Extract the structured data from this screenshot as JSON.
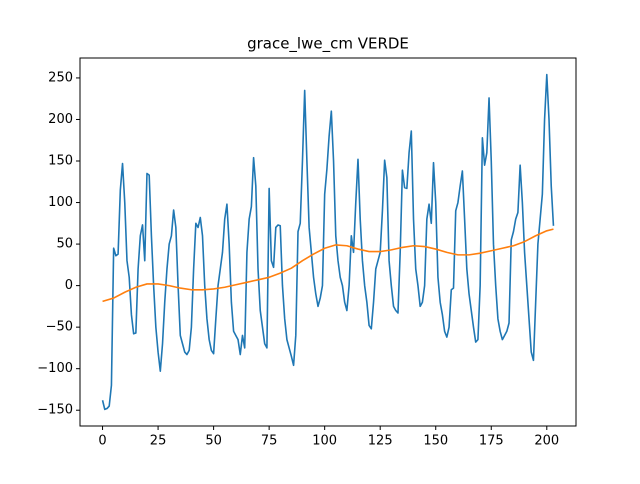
{
  "chart_data": {
    "type": "line",
    "title": "grace_lwe_cm VERDE",
    "xlim": [
      -10.15,
      213.15
    ],
    "ylim": [
      -169,
      274
    ],
    "xticks": [
      0,
      25,
      50,
      75,
      100,
      125,
      150,
      175,
      200
    ],
    "yticks": [
      {
        "value": -150,
        "label": "−150"
      },
      {
        "value": -100,
        "label": "−100"
      },
      {
        "value": -50,
        "label": "−50"
      },
      0,
      50,
      100,
      150,
      200,
      250
    ],
    "series": [
      {
        "color": "#1f77b4",
        "x": [
          0,
          1,
          2,
          3,
          4,
          5,
          6,
          7,
          8,
          9,
          10,
          11,
          12,
          13,
          14,
          15,
          16,
          17,
          18,
          19,
          20,
          21,
          22,
          23,
          24,
          25,
          26,
          27,
          28,
          29,
          30,
          31,
          32,
          33,
          34,
          35,
          36,
          37,
          38,
          39,
          40,
          41,
          42,
          43,
          44,
          45,
          46,
          47,
          48,
          49,
          50,
          51,
          52,
          53,
          54,
          55,
          56,
          57,
          58,
          59,
          60,
          61,
          62,
          63,
          64,
          65,
          66,
          67,
          68,
          69,
          70,
          71,
          72,
          73,
          74,
          75,
          76,
          77,
          78,
          79,
          80,
          81,
          82,
          83,
          84,
          85,
          86,
          87,
          88,
          89,
          90,
          91,
          92,
          93,
          94,
          95,
          96,
          97,
          98,
          99,
          100,
          101,
          102,
          103,
          104,
          105,
          106,
          107,
          108,
          109,
          110,
          111,
          112,
          113,
          114,
          115,
          116,
          117,
          118,
          119,
          120,
          121,
          122,
          123,
          124,
          125,
          126,
          127,
          128,
          129,
          130,
          131,
          132,
          133,
          134,
          135,
          136,
          137,
          138,
          139,
          140,
          141,
          142,
          143,
          144,
          145,
          146,
          147,
          148,
          149,
          150,
          151,
          152,
          153,
          154,
          155,
          156,
          157,
          158,
          159,
          160,
          161,
          162,
          163,
          164,
          165,
          166,
          167,
          168,
          169,
          170,
          171,
          172,
          173,
          174,
          175,
          176,
          177,
          178,
          179,
          180,
          181,
          182,
          183,
          184,
          185,
          186,
          187,
          188,
          189,
          190,
          191,
          192,
          193,
          194,
          195,
          196,
          197,
          198,
          199,
          200,
          201,
          202,
          203
        ],
        "values": [
          -138,
          -149,
          -148,
          -145,
          -120,
          45,
          36,
          38,
          115,
          147,
          100,
          30,
          10,
          -35,
          -58,
          -57,
          20,
          60,
          73,
          30,
          135,
          133,
          60,
          0,
          -50,
          -80,
          -103,
          -70,
          -20,
          20,
          50,
          60,
          91,
          70,
          0,
          -60,
          -70,
          -80,
          -83,
          -78,
          -50,
          20,
          75,
          70,
          82,
          60,
          0,
          -40,
          -65,
          -78,
          -82,
          -40,
          0,
          20,
          40,
          80,
          98,
          50,
          -20,
          -55,
          -60,
          -65,
          -83,
          -60,
          -75,
          40,
          80,
          95,
          154,
          120,
          20,
          -30,
          -50,
          -70,
          -75,
          117,
          30,
          22,
          70,
          73,
          72,
          0,
          -40,
          -65,
          -75,
          -85,
          -96,
          -60,
          65,
          75,
          150,
          235,
          150,
          70,
          40,
          10,
          -10,
          -25,
          -15,
          0,
          110,
          140,
          180,
          210,
          150,
          60,
          30,
          10,
          0,
          -20,
          -30,
          0,
          60,
          40,
          100,
          152,
          80,
          30,
          0,
          -20,
          -48,
          -52,
          -20,
          20,
          30,
          40,
          90,
          151,
          130,
          30,
          0,
          -25,
          -30,
          -33,
          40,
          139,
          118,
          117,
          160,
          186,
          80,
          20,
          0,
          -25,
          -20,
          0,
          80,
          98,
          75,
          148,
          100,
          10,
          -20,
          -35,
          -55,
          -62,
          -50,
          -5,
          -3,
          90,
          100,
          120,
          138,
          80,
          20,
          -10,
          -30,
          -50,
          -68,
          -65,
          0,
          178,
          145,
          160,
          226,
          150,
          50,
          0,
          -40,
          -55,
          -65,
          -60,
          -55,
          -45,
          55,
          65,
          80,
          88,
          145,
          100,
          40,
          0,
          -40,
          -80,
          -90,
          -20,
          50,
          80,
          110,
          200,
          254,
          200,
          120,
          72
        ]
      },
      {
        "color": "#ff7f0e",
        "x": [
          0,
          5,
          10,
          15,
          20,
          25,
          30,
          35,
          40,
          45,
          50,
          55,
          60,
          65,
          70,
          75,
          80,
          85,
          90,
          95,
          100,
          105,
          110,
          115,
          120,
          125,
          130,
          135,
          140,
          145,
          150,
          155,
          160,
          165,
          170,
          175,
          180,
          185,
          190,
          195,
          200,
          203
        ],
        "values": [
          -19,
          -15,
          -8,
          -2,
          2,
          2,
          0,
          -3,
          -5,
          -5,
          -4,
          -2,
          1,
          4,
          7,
          10,
          15,
          21,
          30,
          38,
          45,
          49,
          48,
          44,
          41,
          41,
          43,
          46,
          48,
          47,
          44,
          40,
          37,
          37,
          39,
          42,
          45,
          48,
          53,
          60,
          66,
          68
        ]
      }
    ]
  }
}
